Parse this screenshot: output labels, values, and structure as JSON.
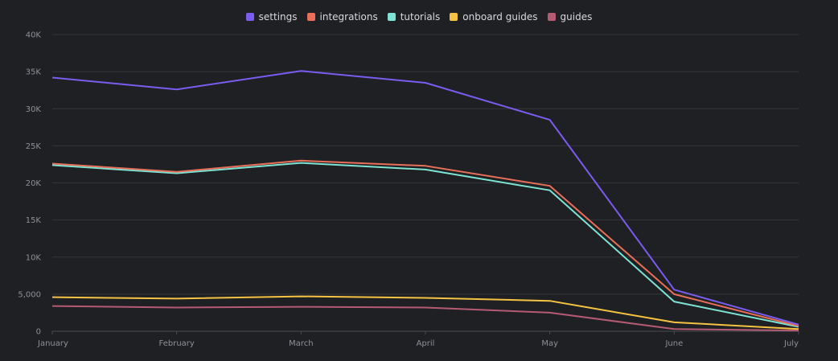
{
  "chart_data": {
    "type": "line",
    "categories": [
      "January",
      "February",
      "March",
      "April",
      "May",
      "June",
      "July"
    ],
    "y_ticks": [
      "0",
      "5,000",
      "10K",
      "15K",
      "20K",
      "25K",
      "30K",
      "35K",
      "40K"
    ],
    "ylim": [
      0,
      40000
    ],
    "grid": true,
    "legend_position": "top-center",
    "series": [
      {
        "name": "settings",
        "color": "#7b5cf0",
        "values": [
          34200,
          32600,
          35100,
          33500,
          28500,
          5600,
          900
        ]
      },
      {
        "name": "integrations",
        "color": "#e8705a",
        "values": [
          22600,
          21500,
          23000,
          22300,
          19600,
          5000,
          700
        ]
      },
      {
        "name": "tutorials",
        "color": "#7de3d4",
        "values": [
          22400,
          21300,
          22700,
          21800,
          19000,
          4000,
          600
        ]
      },
      {
        "name": "onboard guides",
        "color": "#f5c242",
        "values": [
          4600,
          4400,
          4700,
          4500,
          4100,
          1200,
          300
        ]
      },
      {
        "name": "guides",
        "color": "#b55a73",
        "values": [
          3400,
          3200,
          3300,
          3200,
          2500,
          300,
          100
        ]
      }
    ]
  }
}
